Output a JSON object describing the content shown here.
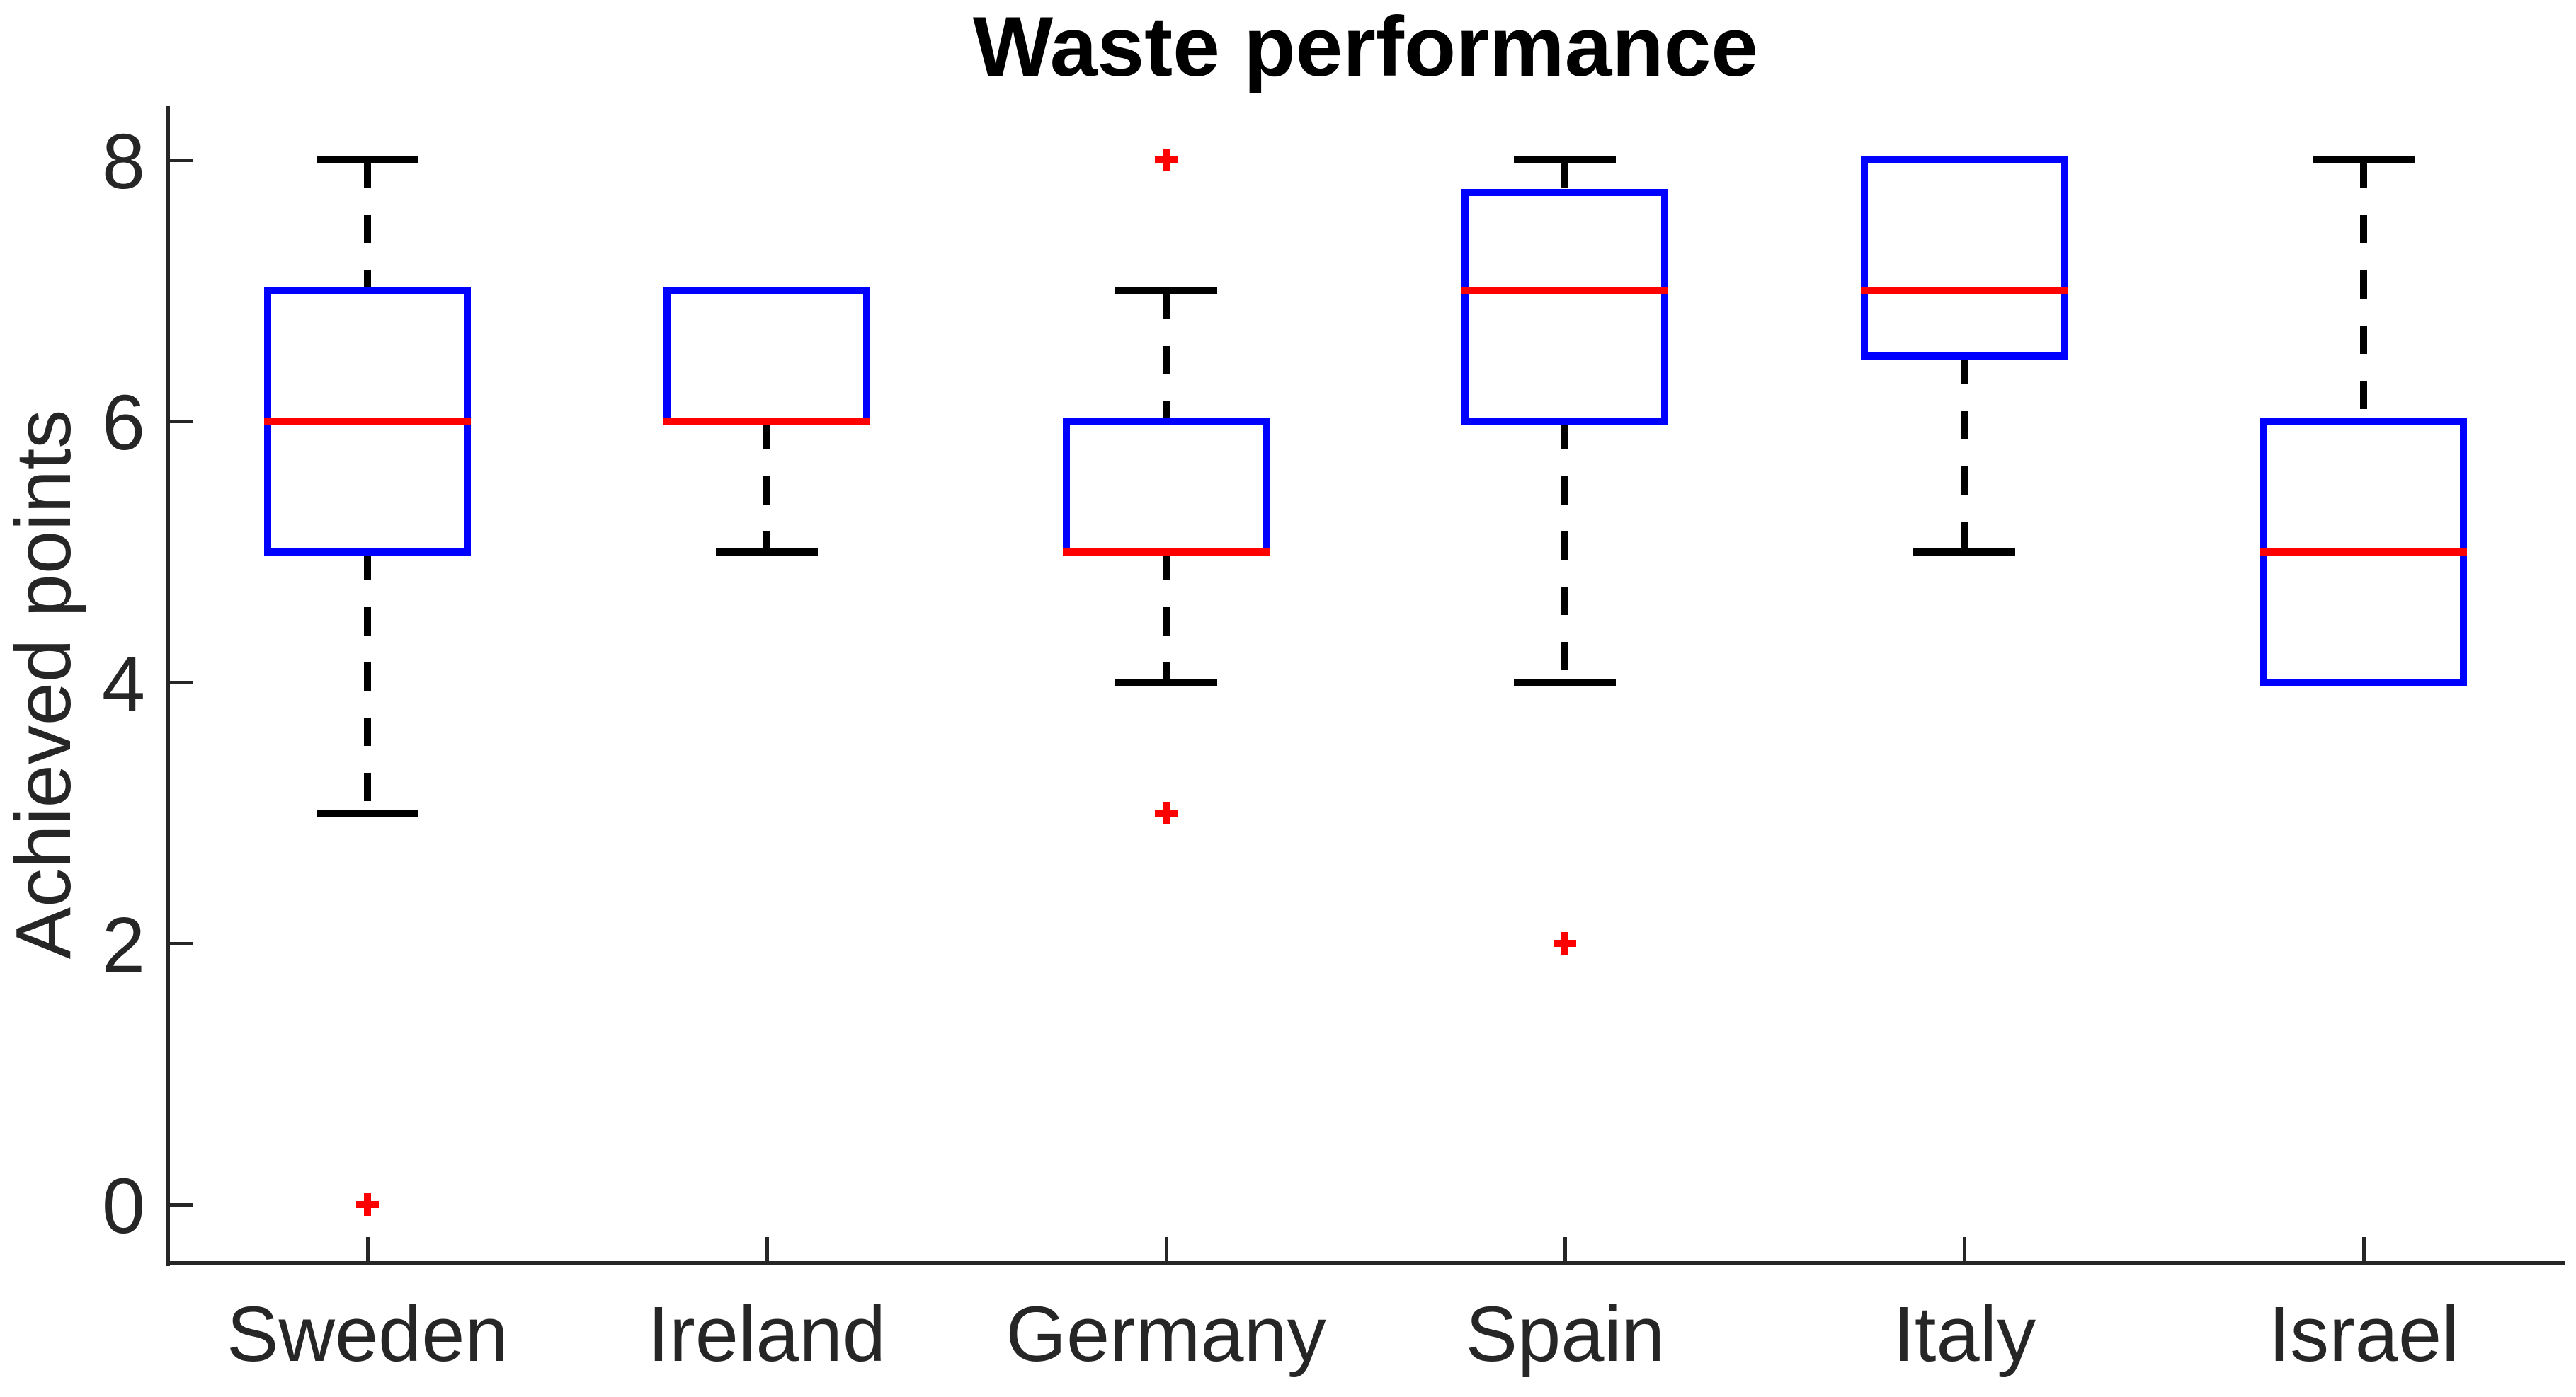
{
  "figure": {
    "title": "Waste performance"
  },
  "chart_data": {
    "type": "boxplot",
    "title": "Waste performance",
    "xlabel": "",
    "ylabel": "Achieved points",
    "categories": [
      "Sweden",
      "Ireland",
      "Germany",
      "Spain",
      "Italy",
      "Israel"
    ],
    "yticks": [
      0,
      2,
      4,
      6,
      8
    ],
    "ylim": [
      -0.45,
      8.4
    ],
    "grid": false,
    "legend": "none",
    "series": [
      {
        "name": "Sweden",
        "q1": 5,
        "median": 6,
        "q3": 7,
        "whisker_low": 3,
        "whisker_high": 8,
        "outliers": [
          0
        ]
      },
      {
        "name": "Ireland",
        "q1": 6,
        "median": 6,
        "q3": 7,
        "whisker_low": 5,
        "whisker_high": 7,
        "outliers": []
      },
      {
        "name": "Germany",
        "q1": 5,
        "median": 5,
        "q3": 6,
        "whisker_low": 4,
        "whisker_high": 7,
        "outliers": [
          8,
          3
        ]
      },
      {
        "name": "Spain",
        "q1": 6,
        "median": 7,
        "q3": 7.75,
        "whisker_low": 4,
        "whisker_high": 8,
        "outliers": [
          2
        ]
      },
      {
        "name": "Italy",
        "q1": 6.5,
        "median": 7,
        "q3": 8,
        "whisker_low": 5,
        "whisker_high": 8,
        "outliers": []
      },
      {
        "name": "Israel",
        "q1": 4,
        "median": 5,
        "q3": 6,
        "whisker_low": 4,
        "whisker_high": 8,
        "outliers": []
      }
    ],
    "colors": {
      "box": "#0000FF",
      "median": "#FF0000",
      "outlier": "#FF0000",
      "whisker": "#000000",
      "axis": "#262626",
      "tick_label": "#262626",
      "title": "#000000"
    }
  }
}
